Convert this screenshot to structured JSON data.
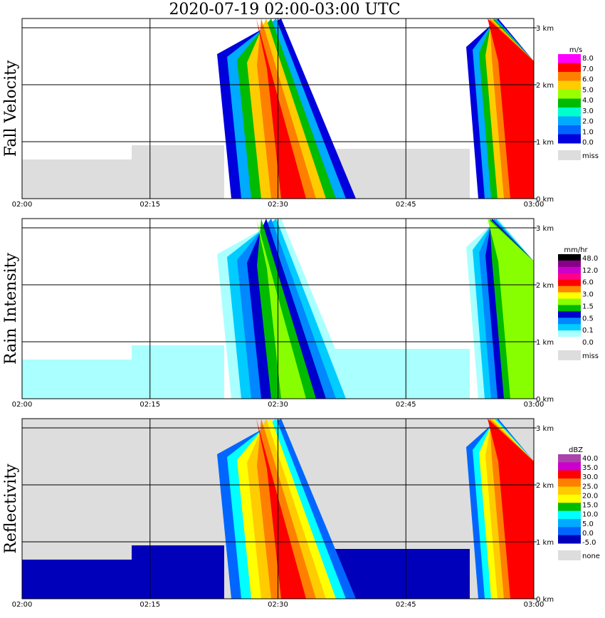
{
  "title": "2020-07-19   02:00-03:00 UTC",
  "chart_data": [
    {
      "type": "heatmap",
      "ylabel": "Fall Velocity",
      "xticks": [
        "02:00",
        "02:15",
        "02:30",
        "02:45",
        "03:00"
      ],
      "yticks": [
        "0 km",
        "1 km",
        "2 km",
        "3 km"
      ],
      "colorbar": {
        "unit": "m/s",
        "labels": [
          "8.0",
          "7.0",
          "6.0",
          "5.0",
          "4.0",
          "3.0",
          "2.0",
          "1.0",
          "0.0",
          "miss"
        ],
        "colors": [
          "#ff00ff",
          "#ff0000",
          "#ff8000",
          "#ffcc00",
          "#99ff00",
          "#00bb00",
          "#00ffcc",
          "#00aaff",
          "#0066ff",
          "#0000dd",
          "#dddddd"
        ]
      },
      "background": "#ffffff"
    },
    {
      "type": "heatmap",
      "ylabel": "Rain Intensity",
      "xticks": [
        "02:00",
        "02:15",
        "02:30",
        "02:45",
        "03:00"
      ],
      "yticks": [
        "0 km",
        "1 km",
        "2 km",
        "3 km"
      ],
      "colorbar": {
        "unit": "mm/hr",
        "labels": [
          "48.0",
          "12.0",
          "6.0",
          "3.0",
          "1.5",
          "0.5",
          "0.1",
          "0.0",
          "miss"
        ],
        "colors": [
          "#000000",
          "#880088",
          "#cc00cc",
          "#ff0088",
          "#ff0000",
          "#ff8800",
          "#ffff00",
          "#88ff00",
          "#00bb00",
          "#0000cc",
          "#0088ff",
          "#00ccff",
          "#aaffff",
          "#ffffff",
          "#dddddd"
        ]
      },
      "background": "#ffffff"
    },
    {
      "type": "heatmap",
      "ylabel": "Reflectivity",
      "xticks": [
        "02:00",
        "02:15",
        "02:30",
        "02:45",
        "03:00"
      ],
      "yticks": [
        "0 km",
        "1 km",
        "2 km",
        "3 km"
      ],
      "colorbar": {
        "unit": "dBZ",
        "labels": [
          "40.0",
          "35.0",
          "30.0",
          "25.0",
          "20.0",
          "15.0",
          "10.0",
          "5.0",
          "0.0",
          "-5.0",
          "none"
        ],
        "colors": [
          "#aa44aa",
          "#cc00cc",
          "#ff0000",
          "#ff8000",
          "#ffcc00",
          "#ffff00",
          "#00bb00",
          "#00ffff",
          "#00aaff",
          "#0066ff",
          "#0000bb",
          "#dddddd"
        ]
      },
      "background": "#dddddd"
    }
  ]
}
